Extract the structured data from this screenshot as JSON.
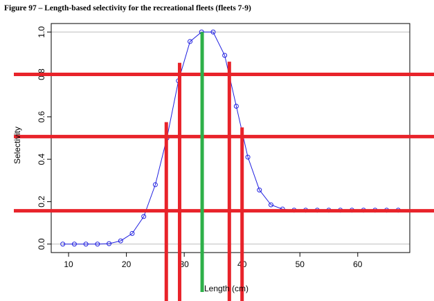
{
  "caption": "Figure 97 – Length-based selectivity for the recreational fleets (fleets 7-9)",
  "chart_data": {
    "type": "line",
    "xlabel": "Length (cm)",
    "ylabel": "Selectivity",
    "xlim": [
      7,
      69
    ],
    "ylim": [
      -0.04,
      1.04
    ],
    "xticks": [
      10,
      20,
      30,
      40,
      50,
      60
    ],
    "yticks": [
      0.0,
      0.2,
      0.4,
      0.6,
      0.8,
      1.0
    ],
    "ytick_labels": [
      "0.0",
      "0.2",
      "0.4",
      "0.6",
      "0.8",
      "1.0"
    ],
    "grid_y": [
      0.0,
      1.0
    ],
    "series": [
      {
        "color": "#2020e0",
        "marker": "open-circle",
        "x": [
          9,
          11,
          13,
          15,
          17,
          19,
          21,
          23,
          25,
          27,
          29,
          31,
          33,
          35,
          37,
          39,
          41,
          43,
          45,
          47,
          49,
          51,
          53,
          55,
          57,
          59,
          61,
          63,
          65,
          67
        ],
        "y": [
          0.0,
          0.0,
          0.0,
          0.0,
          0.002,
          0.015,
          0.05,
          0.13,
          0.28,
          0.5,
          0.77,
          0.955,
          1.0,
          1.0,
          0.89,
          0.65,
          0.41,
          0.255,
          0.185,
          0.165,
          0.16,
          0.16,
          0.16,
          0.16,
          0.16,
          0.16,
          0.16,
          0.16,
          0.16,
          0.16
        ]
      }
    ],
    "overlays": {
      "horizontal_red": [
        0.8,
        0.507,
        0.157
      ],
      "vertical_red": [
        {
          "x": 26.9,
          "y_top": 0.575
        },
        {
          "x": 29.2,
          "y_top": 0.855
        },
        {
          "x": 37.8,
          "y_top": 0.86
        },
        {
          "x": 40.0,
          "y_top": 0.55
        }
      ],
      "vertical_green": {
        "x": 33.1,
        "y_top": 1.0
      },
      "red_color": "#e8232a",
      "green_color": "#2eb049"
    }
  }
}
